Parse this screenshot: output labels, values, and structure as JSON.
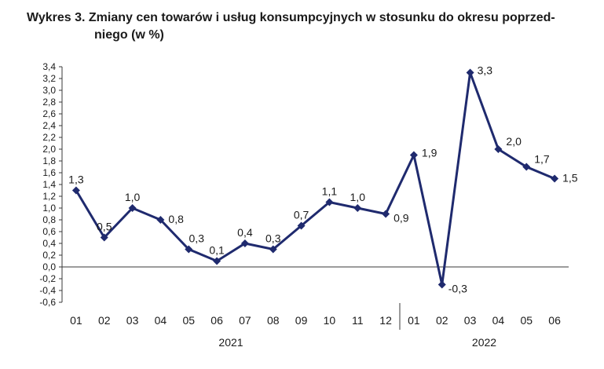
{
  "title_line1": "Wykres 3. Zmiany cen towarów i usług konsumpcyjnych w stosunku do okresu poprzed-",
  "title_line2": "niego (w %)",
  "chart_data": {
    "type": "line",
    "title": "Wykres 3. Zmiany cen towarów i usług konsumpcyjnych w stosunku do okresu poprzedniego (w %)",
    "categories": [
      "01",
      "02",
      "03",
      "04",
      "05",
      "06",
      "07",
      "08",
      "09",
      "10",
      "11",
      "12",
      "01",
      "02",
      "03",
      "04",
      "05",
      "06"
    ],
    "groups": [
      {
        "label": "2021",
        "start": 0,
        "end": 11
      },
      {
        "label": "2022",
        "start": 12,
        "end": 17
      }
    ],
    "series": [
      {
        "values": [
          1.3,
          0.5,
          1.0,
          0.8,
          0.3,
          0.1,
          0.4,
          0.3,
          0.7,
          1.1,
          1.0,
          0.9,
          1.9,
          -0.3,
          3.3,
          2.0,
          1.7,
          1.5
        ],
        "labels": [
          "1,3",
          "0,5",
          "1,0",
          "0,8",
          "0,3",
          "0,1",
          "0,4",
          "0,3",
          "0,7",
          "1,1",
          "1,0",
          "0,9",
          "1,9",
          "-0,3",
          "3,3",
          "2,0",
          "1,7",
          "1,5"
        ],
        "color": "#1f2a6e"
      }
    ],
    "ylim": [
      -0.6,
      3.4
    ],
    "yticks": [
      "3,4",
      "3,2",
      "3,0",
      "2,8",
      "2,6",
      "2,4",
      "2,2",
      "2,0",
      "1,8",
      "1,6",
      "1,4",
      "1,2",
      "1,0",
      "0,8",
      "0,6",
      "0,4",
      "0,2",
      "0,0",
      "-0,2",
      "-0,4",
      "-0,6"
    ],
    "xlabel": "",
    "ylabel": "",
    "grid": false,
    "legend": "none"
  }
}
